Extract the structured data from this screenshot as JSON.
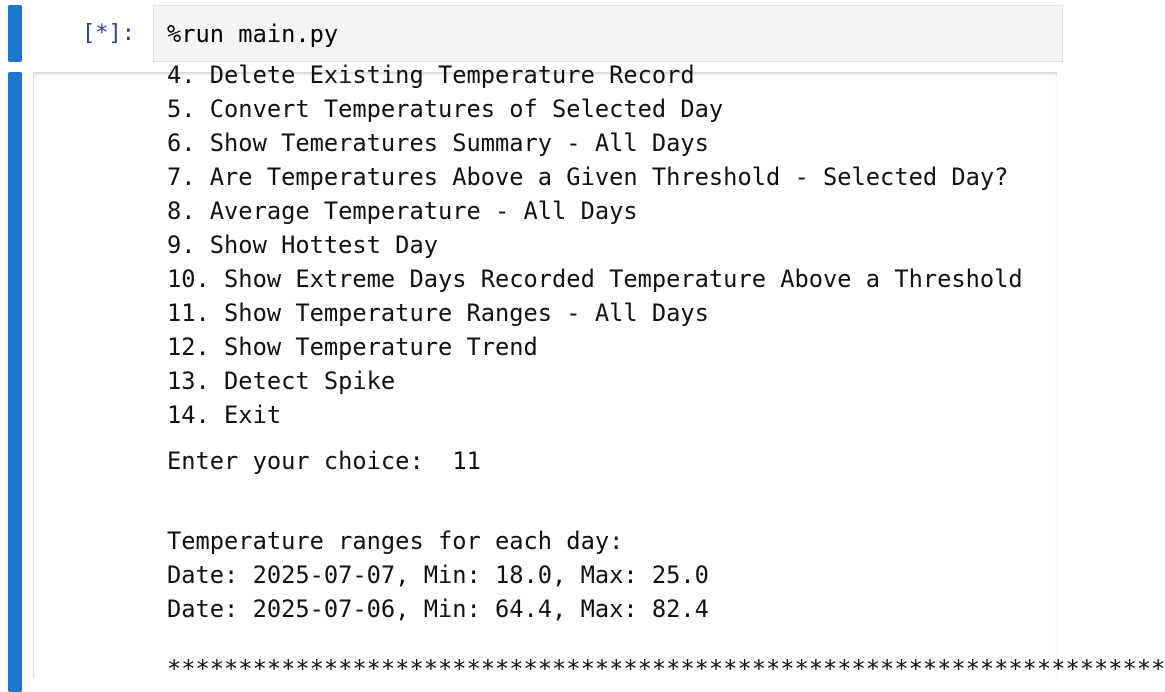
{
  "input_cell": {
    "prompt": "[*]:",
    "code": "%run main.py"
  },
  "output": {
    "menu": [
      "4. Delete Existing Temperature Record",
      "5. Convert Temperatures of Selected Day",
      "6. Show Temeratures Summary - All Days",
      "7. Are Temperatures Above a Given Threshold - Selected Day?",
      "8. Average Temperature - All Days",
      "9. Show Hottest Day",
      "10. Show Extreme Days Recorded Temperature Above a Threshold",
      "11. Show Temperature Ranges - All Days",
      "12. Show Temperature Trend",
      "13. Detect Spike",
      "14. Exit"
    ],
    "prompt": "Enter your choice:",
    "choice": "11",
    "result": [
      "Temperature ranges for each day:",
      "Date: 2025-07-07, Min: 18.0, Max: 25.0",
      "Date: 2025-07-06, Min: 64.4, Max: 82.4"
    ],
    "separator": "**********************************************************************"
  }
}
